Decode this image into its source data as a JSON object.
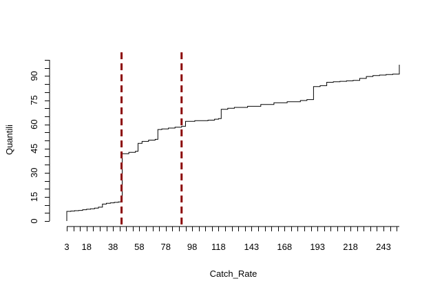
{
  "chart_data": {
    "type": "line",
    "title": "",
    "xlabel": "Catch_Rate",
    "ylabel": "Quantili",
    "xlim": [
      3,
      255
    ],
    "ylim": [
      0,
      100
    ],
    "x_tick_labels": [
      3,
      18,
      38,
      58,
      78,
      98,
      118,
      143,
      168,
      193,
      218,
      243
    ],
    "y_tick_labels": [
      0,
      15,
      30,
      45,
      60,
      75,
      90
    ],
    "series": [
      {
        "type": "step",
        "x": [
          3,
          3,
          6,
          9,
          12,
          15,
          18,
          21,
          24,
          27,
          30,
          33,
          36,
          39,
          42,
          45,
          45,
          50,
          55,
          57,
          60,
          65,
          70,
          72,
          75,
          80,
          85,
          90,
          93,
          93,
          100,
          110,
          115,
          118,
          120,
          125,
          130,
          140,
          150,
          160,
          170,
          180,
          185,
          190,
          195,
          200,
          205,
          210,
          215,
          220,
          225,
          230,
          235,
          240,
          245,
          250,
          255,
          255
        ],
        "y": [
          0,
          6,
          6.2,
          6.4,
          6.6,
          7.0,
          7.3,
          7.6,
          8.0,
          8.6,
          10.5,
          11.0,
          11.3,
          11.6,
          11.9,
          12.3,
          41.8,
          42.6,
          43.3,
          48.2,
          49.4,
          50.2,
          50.7,
          56.8,
          57.2,
          57.7,
          58.2,
          58.8,
          61.7,
          61.9,
          62.3,
          62.6,
          63.2,
          63.6,
          69.3,
          70.0,
          70.5,
          71.2,
          72.3,
          73.4,
          74.0,
          74.8,
          75.4,
          83.4,
          84.0,
          86.1,
          86.4,
          86.7,
          87.0,
          87.3,
          88.5,
          89.7,
          90.3,
          90.6,
          90.9,
          91.2,
          91.5,
          97.0
        ]
      }
    ],
    "vlines": [
      {
        "x": 44.5,
        "color": "#8b0000",
        "style": "dashed"
      },
      {
        "x": 90,
        "color": "#8b0000",
        "style": "dashed"
      }
    ],
    "grid": false
  }
}
